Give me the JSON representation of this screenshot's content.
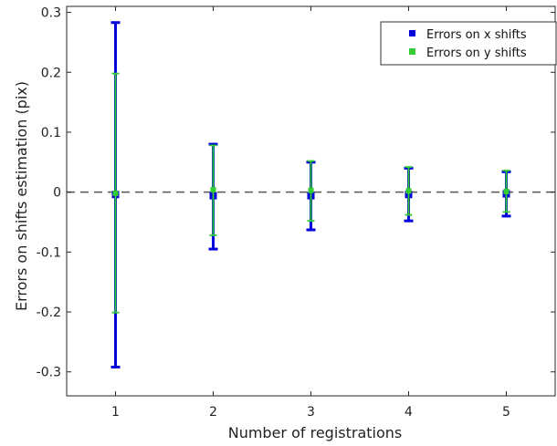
{
  "chart_data": {
    "type": "errorbar",
    "title": "",
    "xlabel": "Number of registrations",
    "ylabel": "Errors on shifts estimation (pix)",
    "xlim": [
      0.5,
      5.5
    ],
    "ylim": [
      -0.34,
      0.31
    ],
    "xticks": [
      "1",
      "2",
      "3",
      "4",
      "5"
    ],
    "yticks": [
      "-0.3",
      "-0.2",
      "-0.1",
      "0",
      "0.1",
      "0.2",
      "0.3"
    ],
    "reference_line": {
      "y": 0,
      "style": "dashed",
      "color": "#555555"
    },
    "grid": false,
    "legend_position": "top-right",
    "series": [
      {
        "name": "Errors on x shifts",
        "color": "#0000dd",
        "x": [
          1,
          2,
          3,
          4,
          5
        ],
        "y": [
          -0.004,
          -0.006,
          -0.006,
          -0.004,
          -0.003
        ],
        "err_low": [
          -0.292,
          -0.095,
          -0.063,
          -0.048,
          -0.04
        ],
        "err_high": [
          0.283,
          0.08,
          0.05,
          0.04,
          0.034
        ]
      },
      {
        "name": "Errors on y shifts",
        "color": "#33cc33",
        "x": [
          1,
          2,
          3,
          4,
          5
        ],
        "y": [
          -0.002,
          0.004,
          0.003,
          0.002,
          0.001
        ],
        "err_low": [
          -0.201,
          -0.072,
          -0.048,
          -0.038,
          -0.033
        ],
        "err_high": [
          0.198,
          0.078,
          0.052,
          0.042,
          0.036
        ]
      }
    ]
  }
}
